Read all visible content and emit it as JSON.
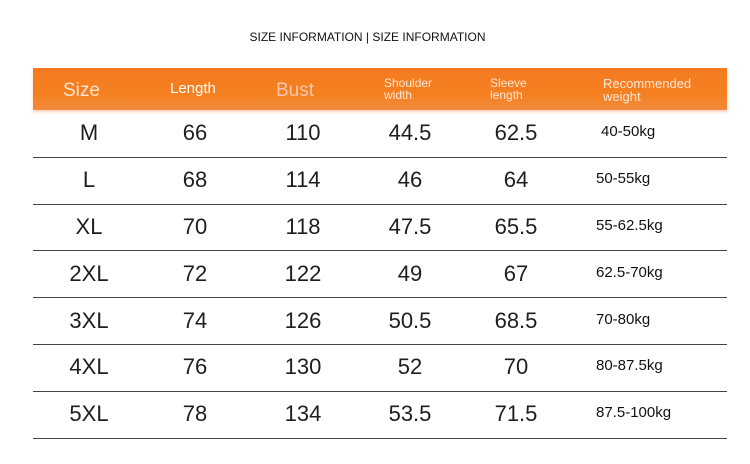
{
  "header": {
    "title": "SIZE INFORMATION | SIZE INFORMATION"
  },
  "table": {
    "columns": [
      "Size",
      "Length",
      "Bust",
      "Shoulder width",
      "Sleeve length",
      "Recommended weight"
    ],
    "rows": [
      [
        "M",
        66,
        110,
        44.5,
        62.5,
        "40-50kg"
      ],
      [
        "L",
        68,
        114,
        46,
        64,
        "50-55kg"
      ],
      [
        "XL",
        70,
        118,
        47.5,
        65.5,
        "55-62.5kg"
      ],
      [
        "2XL",
        72,
        122,
        49,
        67,
        "62.5-70kg"
      ],
      [
        "3XL",
        74,
        126,
        50.5,
        68.5,
        "70-80kg"
      ],
      [
        "4XL",
        76,
        130,
        52,
        70,
        "80-87.5kg"
      ],
      [
        "5XL",
        78,
        134,
        53.5,
        71.5,
        "87.5-100kg"
      ]
    ]
  }
}
